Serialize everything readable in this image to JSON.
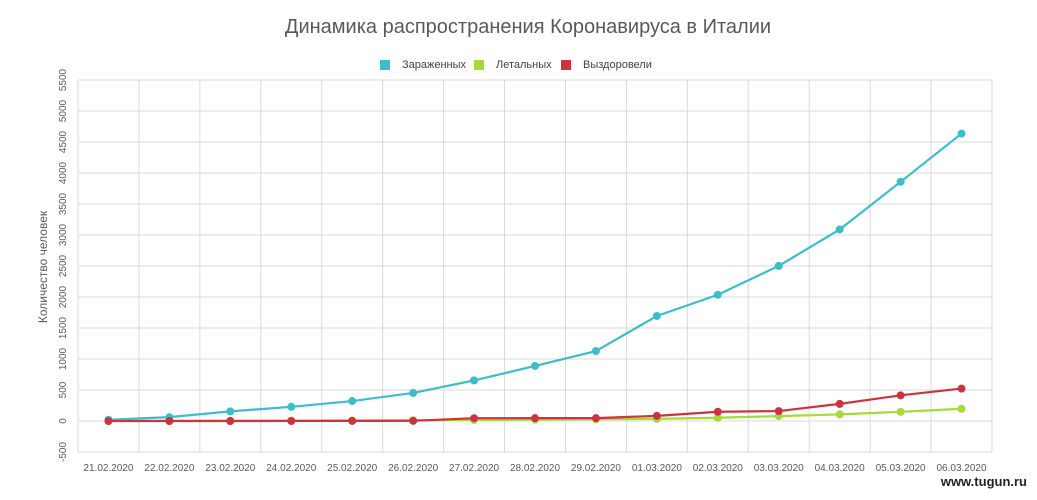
{
  "chart_data": {
    "type": "line",
    "title": "Динамика распространения Коронавируса в Италии",
    "xlabel": "",
    "ylabel": "Количество человек",
    "categories": [
      "21.02.2020",
      "22.02.2020",
      "23.02.2020",
      "24.02.2020",
      "25.02.2020",
      "26.02.2020",
      "27.02.2020",
      "28.02.2020",
      "29.02.2020",
      "01.03.2020",
      "02.03.2020",
      "03.03.2020",
      "04.03.2020",
      "05.03.2020",
      "06.03.2020"
    ],
    "y_ticks": [
      "-500",
      "0",
      "500",
      "1000",
      "1500",
      "2000",
      "2500",
      "3000",
      "3500",
      "4000",
      "4500",
      "5000",
      "5500"
    ],
    "ylim": [
      -500,
      5500
    ],
    "grid": true,
    "legend_position": "top",
    "series": [
      {
        "name": "Зараженных",
        "color": "#3dbcc9",
        "values": [
          20,
          62,
          155,
          229,
          322,
          453,
          655,
          888,
          1128,
          1694,
          2036,
          2502,
          3089,
          3858,
          4636
        ]
      },
      {
        "name": "Летальных",
        "color": "#a6d93a",
        "values": [
          1,
          2,
          3,
          7,
          10,
          12,
          17,
          21,
          29,
          34,
          52,
          79,
          107,
          148,
          197
        ]
      },
      {
        "name": "Выздоровели",
        "color": "#cc3340",
        "values": [
          0,
          0,
          0,
          1,
          1,
          3,
          45,
          46,
          46,
          83,
          149,
          160,
          276,
          414,
          523
        ]
      }
    ]
  },
  "watermark": "www.tugun.ru"
}
